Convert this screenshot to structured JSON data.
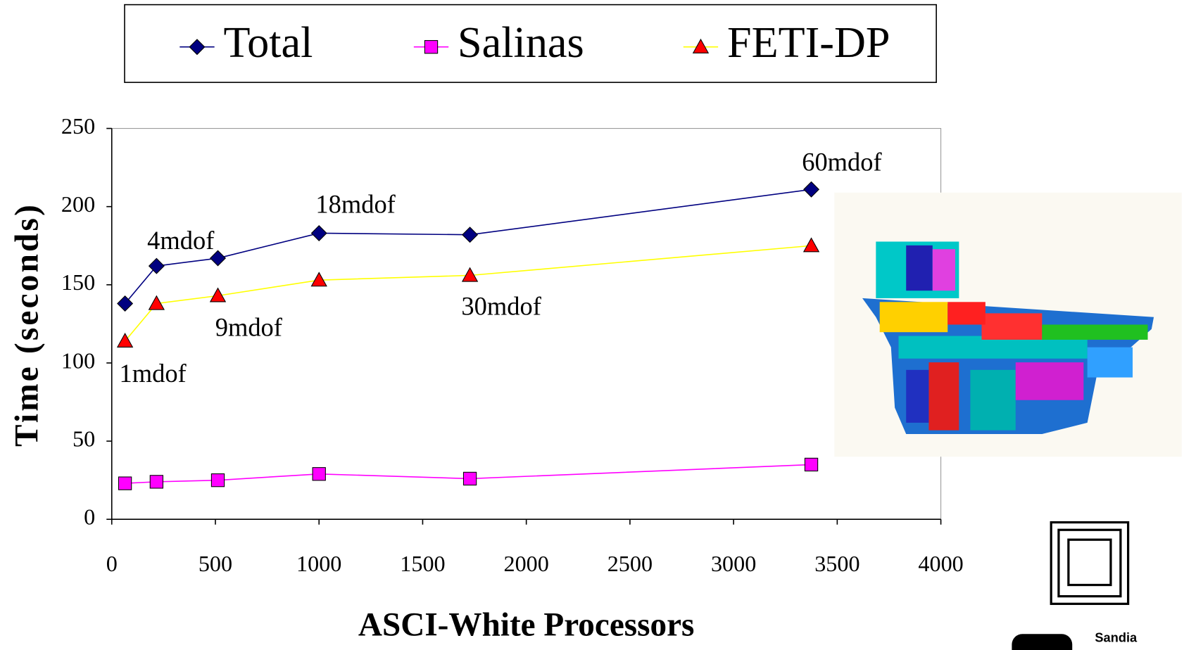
{
  "chart_data": {
    "type": "line",
    "legend": "top",
    "xlabel": "ASCI-White Processors",
    "ylabel": "Time (seconds)",
    "x": [
      64,
      216,
      512,
      1000,
      1728,
      3375
    ],
    "series": [
      {
        "name": "Total",
        "color": "#000080",
        "marker_color": "#000080",
        "marker": "diamond",
        "values": [
          138,
          162,
          167,
          183,
          182,
          211
        ]
      },
      {
        "name": "Salinas",
        "color": "#ff00ff",
        "marker_color": "#ff00ff",
        "marker": "square",
        "values": [
          23,
          24,
          25,
          29,
          26,
          35
        ]
      },
      {
        "name": "FETI-DP",
        "color": "#ffff00",
        "marker_color": "#ff0000",
        "marker": "triangle",
        "values": [
          114,
          138,
          143,
          153,
          156,
          175
        ]
      }
    ],
    "annotations": [
      "1mdof",
      "4mdof",
      "9mdof",
      "18mdof",
      "30mdof",
      "60mdof"
    ],
    "xlim": [
      0,
      4000
    ],
    "xticks": [
      0,
      500,
      1000,
      1500,
      2000,
      2500,
      3000,
      3500,
      4000
    ],
    "ylim": [
      0,
      250
    ],
    "yticks": [
      0,
      50,
      100,
      150,
      200,
      250
    ],
    "grid": false
  },
  "logos": {
    "sandia": "Sandia"
  }
}
